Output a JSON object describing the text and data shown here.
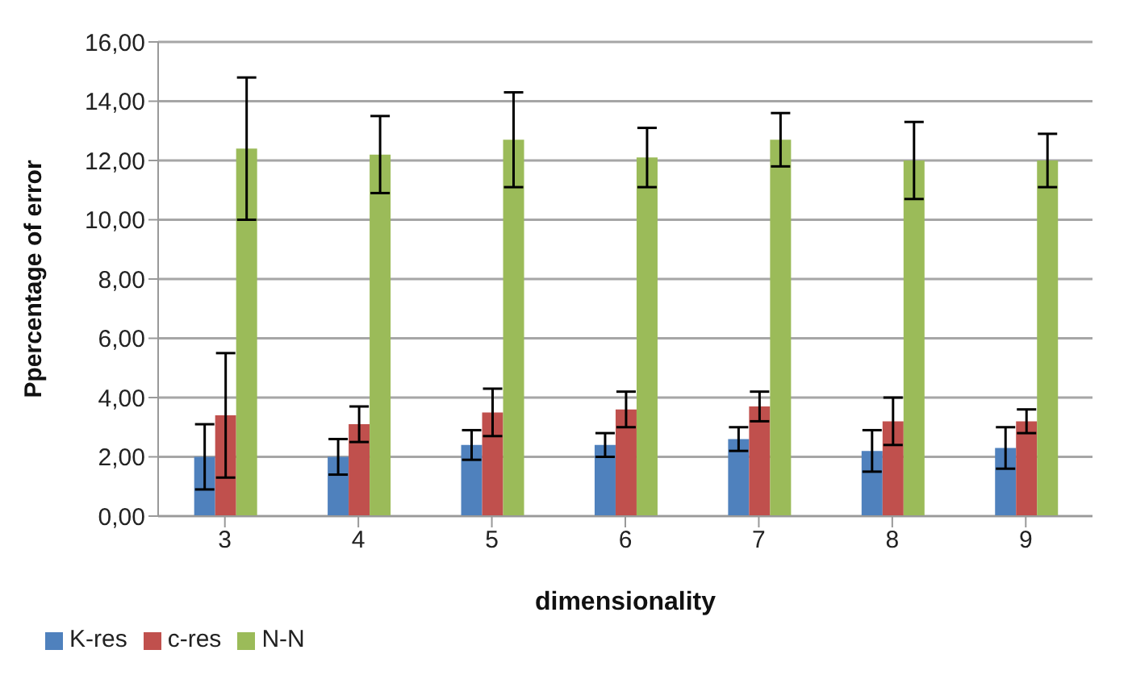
{
  "chart_data": {
    "type": "bar",
    "xlabel": "dimensionality",
    "ylabel": "Ppercentage of error",
    "categories": [
      "3",
      "4",
      "5",
      "6",
      "7",
      "8",
      "9"
    ],
    "series": [
      {
        "name": "K-res",
        "color": "#4f81bd",
        "values": [
          2.0,
          2.0,
          2.4,
          2.4,
          2.6,
          2.2,
          2.3
        ],
        "errors": [
          1.1,
          0.6,
          0.5,
          0.4,
          0.4,
          0.7,
          0.7
        ]
      },
      {
        "name": "c-res",
        "color": "#c0504d",
        "values": [
          3.4,
          3.1,
          3.5,
          3.6,
          3.7,
          3.2,
          3.2
        ],
        "errors": [
          2.1,
          0.6,
          0.8,
          0.6,
          0.5,
          0.8,
          0.4
        ]
      },
      {
        "name": "N-N",
        "color": "#9bbb59",
        "values": [
          12.4,
          12.2,
          12.7,
          12.1,
          12.7,
          12.0,
          12.0
        ],
        "errors": [
          2.4,
          1.3,
          1.6,
          1.0,
          0.9,
          1.3,
          0.9
        ]
      }
    ],
    "ylim": [
      0,
      16
    ],
    "yticks": [
      {
        "value": 0,
        "label": "0,00"
      },
      {
        "value": 2,
        "label": "2,00"
      },
      {
        "value": 4,
        "label": "4,00"
      },
      {
        "value": 6,
        "label": "6,00"
      },
      {
        "value": 8,
        "label": "8,00"
      },
      {
        "value": 10,
        "label": "10,00"
      },
      {
        "value": 12,
        "label": "12,00"
      },
      {
        "value": 14,
        "label": "14,00"
      },
      {
        "value": 16,
        "label": "16,00"
      }
    ],
    "grid": "y",
    "legend": "bottom left"
  }
}
